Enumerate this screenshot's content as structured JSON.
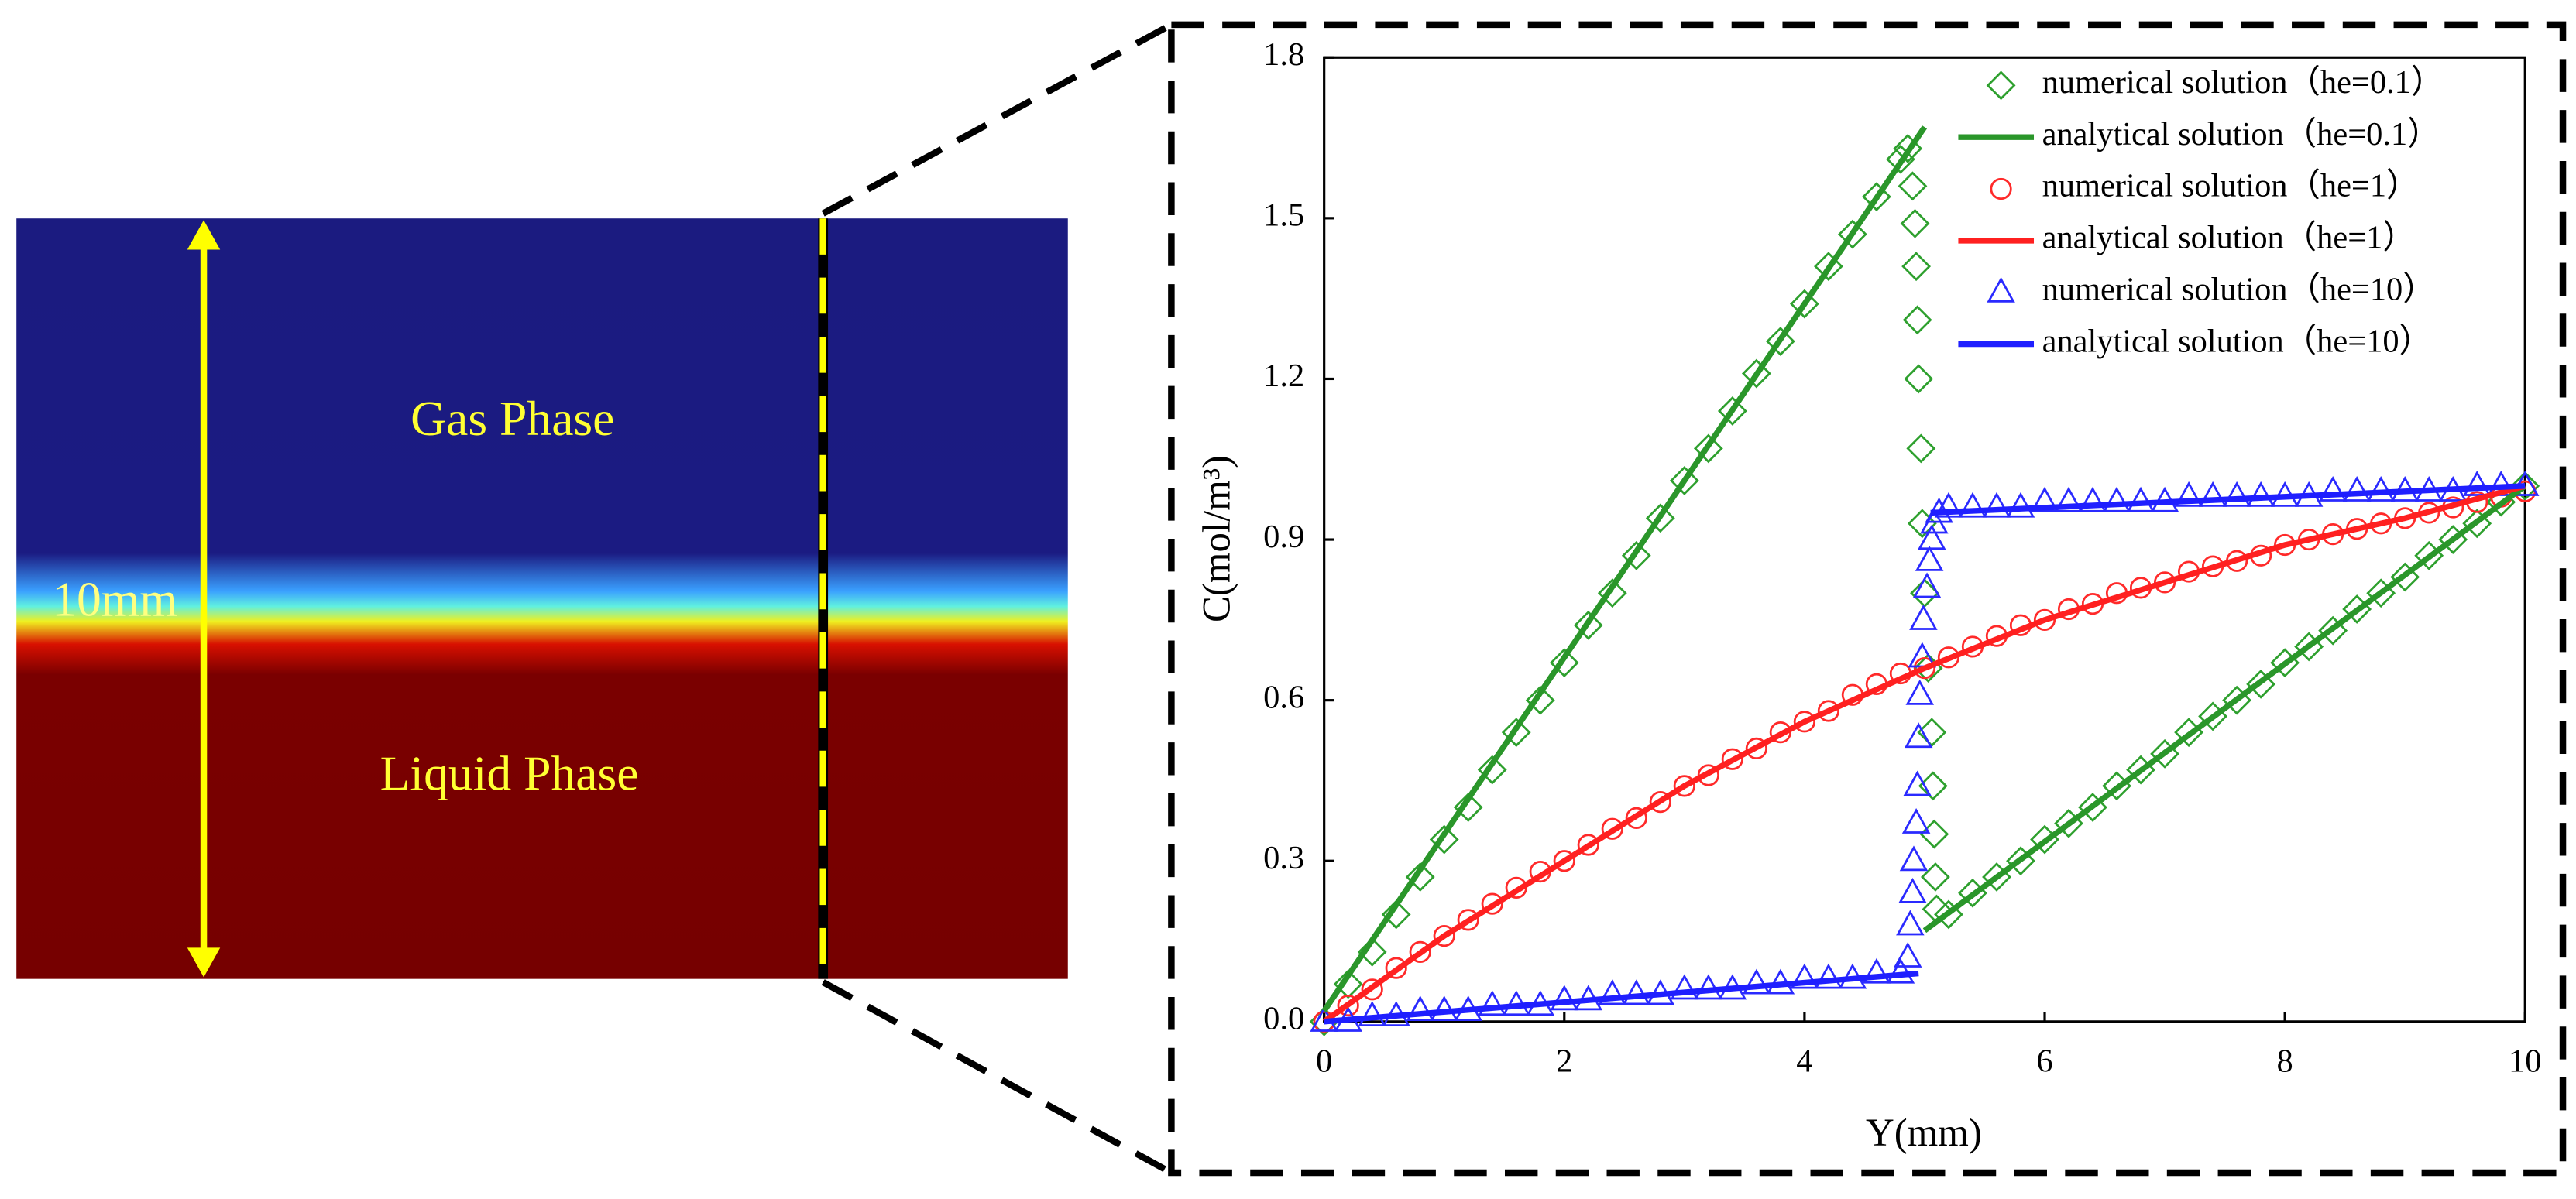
{
  "left_panel": {
    "gas_label": "Gas Phase",
    "liquid_label": "Liquid Phase",
    "size_label": "10mm"
  },
  "chart_data": {
    "type": "line",
    "x_label": "Y(mm)",
    "y_label": "C(mol/m³)",
    "xlim": [
      0,
      10
    ],
    "ylim": [
      0,
      1.8
    ],
    "xticks": [
      0,
      2,
      4,
      6,
      8,
      10
    ],
    "yticks": [
      {
        "value": 0,
        "label": "0.0"
      },
      0.3,
      0.6,
      0.9,
      1.2,
      1.5,
      1.8
    ],
    "legend": "upper right",
    "series": [
      {
        "name": "numerical solution（he=0.1）",
        "color": "#2ea02e",
        "marker": "diamond",
        "x": [
          0,
          0.2,
          0.4,
          0.6,
          0.8,
          1,
          1.2,
          1.4,
          1.6,
          1.8,
          2,
          2.2,
          2.4,
          2.6,
          2.8,
          3,
          3.2,
          3.4,
          3.6,
          3.8,
          4,
          4.2,
          4.4,
          4.6,
          4.8,
          4.86,
          4.9,
          4.92,
          4.93,
          4.94,
          4.95,
          4.97,
          4.98,
          5,
          5.03,
          5.06,
          5.07,
          5.08,
          5.09,
          5.1,
          5.2,
          5.4,
          5.6,
          5.8,
          6,
          6.2,
          6.4,
          6.6,
          6.8,
          7,
          7.2,
          7.4,
          7.6,
          7.8,
          8,
          8.2,
          8.4,
          8.6,
          8.8,
          9,
          9.2,
          9.4,
          9.6,
          9.8,
          10
        ],
        "values": [
          0,
          0.07,
          0.13,
          0.2,
          0.27,
          0.34,
          0.4,
          0.47,
          0.54,
          0.6,
          0.67,
          0.74,
          0.8,
          0.87,
          0.94,
          1.01,
          1.07,
          1.14,
          1.21,
          1.27,
          1.34,
          1.41,
          1.47,
          1.54,
          1.61,
          1.63,
          1.56,
          1.49,
          1.41,
          1.31,
          1.2,
          1.07,
          0.93,
          0.8,
          0.66,
          0.54,
          0.44,
          0.35,
          0.27,
          0.21,
          0.2,
          0.24,
          0.27,
          0.3,
          0.34,
          0.37,
          0.4,
          0.44,
          0.47,
          0.5,
          0.54,
          0.57,
          0.6,
          0.63,
          0.67,
          0.7,
          0.73,
          0.77,
          0.8,
          0.83,
          0.87,
          0.9,
          0.93,
          0.97,
          1
        ]
      },
      {
        "name": "analytical solution（he=0.1）",
        "color": "#2a962a",
        "x": [
          0,
          5,
          5,
          5,
          10
        ],
        "values": [
          0.02,
          1.67,
          null,
          0.17,
          1
        ]
      },
      {
        "name": "numerical solution（he=1）",
        "color": "#ff2a2a",
        "marker": "circle",
        "x": [
          0,
          0.2,
          0.4,
          0.6,
          0.8,
          1,
          1.2,
          1.4,
          1.6,
          1.8,
          2,
          2.2,
          2.4,
          2.6,
          2.8,
          3,
          3.2,
          3.4,
          3.6,
          3.8,
          4,
          4.2,
          4.4,
          4.6,
          4.8,
          5,
          5.2,
          5.4,
          5.6,
          5.8,
          6,
          6.2,
          6.4,
          6.6,
          6.8,
          7,
          7.2,
          7.4,
          7.6,
          7.8,
          8,
          8.2,
          8.4,
          8.6,
          8.8,
          9,
          9.2,
          9.4,
          9.6,
          9.8,
          10
        ],
        "values": [
          0,
          0.03,
          0.06,
          0.1,
          0.13,
          0.16,
          0.19,
          0.22,
          0.25,
          0.28,
          0.3,
          0.33,
          0.36,
          0.38,
          0.41,
          0.44,
          0.46,
          0.49,
          0.51,
          0.54,
          0.56,
          0.58,
          0.61,
          0.63,
          0.65,
          0.66,
          0.68,
          0.7,
          0.72,
          0.74,
          0.75,
          0.77,
          0.78,
          0.8,
          0.81,
          0.82,
          0.84,
          0.85,
          0.86,
          0.87,
          0.89,
          0.9,
          0.91,
          0.92,
          0.93,
          0.94,
          0.95,
          0.96,
          0.97,
          0.98,
          0.99
        ]
      },
      {
        "name": "analytical solution（he=1）",
        "color": "#ff2020",
        "x": [
          0,
          1,
          2,
          3,
          4,
          5,
          6,
          7,
          8,
          9,
          10
        ],
        "values": [
          0,
          0.16,
          0.3,
          0.44,
          0.56,
          0.66,
          0.75,
          0.82,
          0.89,
          0.94,
          1
        ]
      },
      {
        "name": "numerical solution（he=10）",
        "color": "#2a2aff",
        "marker": "triangle",
        "x": [
          0,
          0.2,
          0.4,
          0.6,
          0.8,
          1,
          1.2,
          1.4,
          1.6,
          1.8,
          2,
          2.2,
          2.4,
          2.6,
          2.8,
          3,
          3.2,
          3.4,
          3.6,
          3.8,
          4,
          4.2,
          4.4,
          4.6,
          4.8,
          4.86,
          4.88,
          4.9,
          4.91,
          4.93,
          4.94,
          4.95,
          4.96,
          4.98,
          4.99,
          5.02,
          5.04,
          5.06,
          5.08,
          5.12,
          5.2,
          5.4,
          5.6,
          5.8,
          6,
          6.2,
          6.4,
          6.6,
          6.8,
          7,
          7.2,
          7.4,
          7.6,
          7.8,
          8,
          8.2,
          8.4,
          8.6,
          8.8,
          9,
          9.2,
          9.4,
          9.6,
          9.8,
          10
        ],
        "values": [
          0,
          0,
          0.01,
          0.01,
          0.02,
          0.02,
          0.02,
          0.03,
          0.03,
          0.03,
          0.04,
          0.04,
          0.05,
          0.05,
          0.05,
          0.06,
          0.06,
          0.06,
          0.07,
          0.07,
          0.08,
          0.08,
          0.08,
          0.09,
          0.09,
          0.12,
          0.18,
          0.24,
          0.3,
          0.37,
          0.44,
          0.53,
          0.61,
          0.68,
          0.75,
          0.81,
          0.86,
          0.9,
          0.93,
          0.95,
          0.96,
          0.96,
          0.96,
          0.96,
          0.97,
          0.97,
          0.97,
          0.97,
          0.97,
          0.97,
          0.98,
          0.98,
          0.98,
          0.98,
          0.98,
          0.98,
          0.99,
          0.99,
          0.99,
          0.99,
          0.99,
          0.99,
          1,
          1,
          1
        ]
      },
      {
        "name": "analytical solution（he=10）",
        "color": "#1f1fff",
        "x": [
          0,
          4.95,
          5,
          5.05,
          10
        ],
        "values": [
          0,
          0.09,
          null,
          0.95,
          1
        ]
      }
    ]
  }
}
